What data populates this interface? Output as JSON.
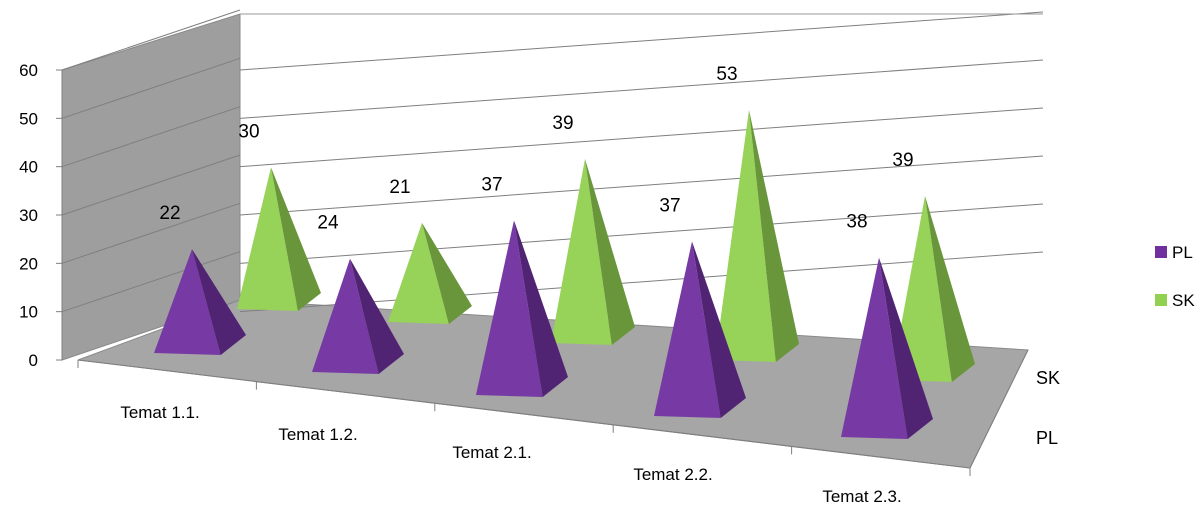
{
  "chart_data": {
    "type": "bar",
    "style": "3d-pyramid",
    "categories": [
      "Temat 1.1.",
      "Temat 1.2.",
      "Temat 2.1.",
      "Temat 2.2.",
      "Temat 2.3."
    ],
    "series": [
      {
        "name": "PL",
        "values": [
          22,
          24,
          37,
          37,
          38
        ],
        "color": "#7030a0"
      },
      {
        "name": "SK",
        "values": [
          30,
          21,
          39,
          53,
          39
        ],
        "color": "#92d050"
      }
    ],
    "y_ticks": [
      0,
      10,
      20,
      30,
      40,
      50,
      60
    ],
    "ylim": [
      0,
      60
    ],
    "grid": true,
    "data_labels": true,
    "legend": {
      "position": "right",
      "items": [
        "PL",
        "SK"
      ]
    },
    "depth_axis_labels": [
      "SK",
      "PL"
    ]
  }
}
